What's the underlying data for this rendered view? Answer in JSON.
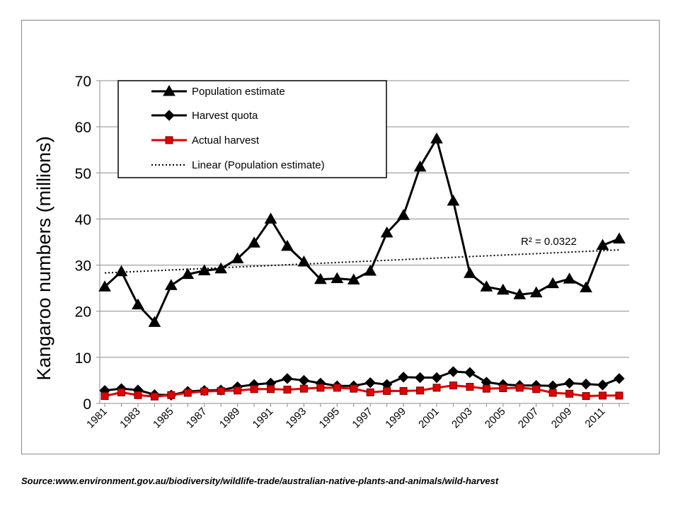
{
  "chart_data": {
    "type": "line",
    "title": "",
    "ylabel": "Kangaroo numbers  (millions)",
    "xlabel": "",
    "ylim": [
      0,
      70
    ],
    "yticks": [
      0,
      10,
      20,
      30,
      40,
      50,
      60,
      70
    ],
    "xlim": [
      1980.7,
      2012.6
    ],
    "xticks": [
      1981,
      1983,
      1985,
      1987,
      1989,
      1991,
      1993,
      1995,
      1997,
      1999,
      2001,
      2003,
      2005,
      2007,
      2009,
      2011
    ],
    "grid": "horizontal",
    "legend_position": "top-left",
    "x": [
      1981,
      1982,
      1983,
      1984,
      1985,
      1986,
      1987,
      1988,
      1989,
      1990,
      1991,
      1992,
      1993,
      1994,
      1995,
      1996,
      1997,
      1998,
      1999,
      2000,
      2001,
      2002,
      2003,
      2004,
      2005,
      2006,
      2007,
      2008,
      2009,
      2010,
      2011,
      2012
    ],
    "series": [
      {
        "name": "Population estimate",
        "color": "#000000",
        "marker": "triangle",
        "values": [
          25.3,
          28.6,
          21.4,
          17.6,
          25.6,
          28.0,
          28.8,
          29.2,
          31.4,
          34.8,
          40.0,
          34.1,
          30.7,
          26.9,
          27.1,
          26.8,
          28.7,
          37.0,
          40.8,
          51.3,
          57.4,
          43.9,
          28.2,
          25.3,
          24.6,
          23.6,
          24.0,
          26.0,
          27.0,
          25.1,
          34.3,
          35.7
        ]
      },
      {
        "name": "Harvest quota",
        "color": "#000000",
        "marker": "diamond",
        "values": [
          2.8,
          3.2,
          2.9,
          1.9,
          1.8,
          2.6,
          2.8,
          2.9,
          3.6,
          4.1,
          4.4,
          5.4,
          5.0,
          4.4,
          3.8,
          3.8,
          4.5,
          4.1,
          5.7,
          5.6,
          5.6,
          6.9,
          6.7,
          4.6,
          4.1,
          3.9,
          3.9,
          3.8,
          4.4,
          4.2,
          4.0,
          5.4
        ]
      },
      {
        "name": "Actual harvest",
        "color": "#e00000",
        "marker": "square",
        "values": [
          1.6,
          2.4,
          1.8,
          1.5,
          1.8,
          2.3,
          2.6,
          2.7,
          2.8,
          3.1,
          3.1,
          3.0,
          3.2,
          3.4,
          3.4,
          3.2,
          2.4,
          2.7,
          2.7,
          2.8,
          3.4,
          3.9,
          3.6,
          3.2,
          3.3,
          3.4,
          3.1,
          2.3,
          2.1,
          1.6,
          1.7,
          1.7
        ]
      },
      {
        "name": "Linear (Population estimate)",
        "color": "#000000",
        "style": "dotted",
        "trend": {
          "x": [
            1981,
            2012
          ],
          "values": [
            28.3,
            33.3
          ]
        }
      }
    ],
    "annotation": "R² = 0.0322"
  },
  "source": "Source:www.environment.gov.au/biodiversity/wildlife-trade/australian-native-plants-and-animals/wild-harvest"
}
